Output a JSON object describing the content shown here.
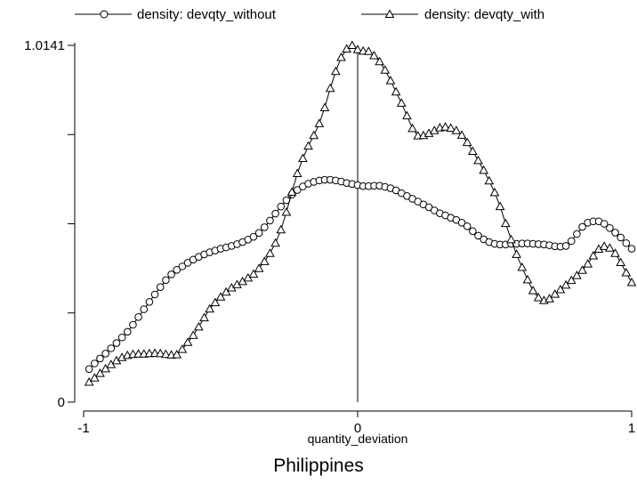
{
  "chart_data": {
    "type": "line",
    "title": "Philippines",
    "xlabel": "quantity_deviation",
    "ylabel": "",
    "xlim": [
      -1,
      1
    ],
    "ylim": [
      0,
      1.0141
    ],
    "xticks": [
      -1,
      0,
      1
    ],
    "xtick_labels": [
      "-1",
      "0",
      "1"
    ],
    "yticks": [
      0,
      0.2535,
      0.507,
      0.7606,
      1.0141
    ],
    "ytick_labels": [
      "0",
      "",
      "",
      "",
      "1.0141"
    ],
    "reference_line_x": 0,
    "legend_position": "top",
    "grid": false,
    "series": [
      {
        "name": "density: devqty_without",
        "marker": "circle",
        "color": "#000000",
        "x": [
          -0.98,
          -0.96,
          -0.94,
          -0.92,
          -0.9,
          -0.88,
          -0.86,
          -0.84,
          -0.82,
          -0.8,
          -0.78,
          -0.76,
          -0.74,
          -0.72,
          -0.7,
          -0.68,
          -0.66,
          -0.64,
          -0.62,
          -0.6,
          -0.58,
          -0.56,
          -0.54,
          -0.52,
          -0.5,
          -0.48,
          -0.46,
          -0.44,
          -0.42,
          -0.4,
          -0.38,
          -0.36,
          -0.34,
          -0.32,
          -0.3,
          -0.28,
          -0.26,
          -0.24,
          -0.22,
          -0.2,
          -0.18,
          -0.16,
          -0.14,
          -0.12,
          -0.1,
          -0.08,
          -0.06,
          -0.04,
          -0.02,
          0,
          0.02,
          0.04,
          0.06,
          0.08,
          0.1,
          0.12,
          0.14,
          0.16,
          0.18,
          0.2,
          0.22,
          0.24,
          0.26,
          0.28,
          0.3,
          0.32,
          0.34,
          0.36,
          0.38,
          0.4,
          0.42,
          0.44,
          0.46,
          0.48,
          0.5,
          0.52,
          0.54,
          0.56,
          0.58,
          0.6,
          0.62,
          0.64,
          0.66,
          0.68,
          0.7,
          0.72,
          0.74,
          0.76,
          0.78,
          0.8,
          0.82,
          0.84,
          0.86,
          0.88,
          0.9,
          0.92,
          0.94,
          0.96,
          0.98,
          1.0
        ],
        "y": [
          0.094,
          0.11,
          0.124,
          0.138,
          0.153,
          0.168,
          0.184,
          0.2,
          0.22,
          0.242,
          0.264,
          0.285,
          0.306,
          0.327,
          0.347,
          0.363,
          0.376,
          0.386,
          0.396,
          0.405,
          0.413,
          0.42,
          0.426,
          0.431,
          0.436,
          0.44,
          0.444,
          0.449,
          0.455,
          0.462,
          0.47,
          0.481,
          0.497,
          0.516,
          0.536,
          0.556,
          0.574,
          0.59,
          0.603,
          0.613,
          0.621,
          0.626,
          0.63,
          0.632,
          0.632,
          0.63,
          0.627,
          0.623,
          0.62,
          0.617,
          0.614,
          0.614,
          0.615,
          0.615,
          0.612,
          0.608,
          0.602,
          0.594,
          0.586,
          0.578,
          0.57,
          0.562,
          0.554,
          0.545,
          0.537,
          0.531,
          0.524,
          0.518,
          0.51,
          0.5,
          0.486,
          0.473,
          0.463,
          0.455,
          0.45,
          0.448,
          0.448,
          0.45,
          0.45,
          0.451,
          0.451,
          0.45,
          0.449,
          0.448,
          0.446,
          0.443,
          0.442,
          0.444,
          0.458,
          0.478,
          0.498,
          0.51,
          0.514,
          0.514,
          0.507,
          0.495,
          0.482,
          0.468,
          0.452,
          0.436
        ]
      },
      {
        "name": "density: devqty_with",
        "marker": "triangle",
        "color": "#000000",
        "x": [
          -0.98,
          -0.96,
          -0.94,
          -0.92,
          -0.9,
          -0.88,
          -0.86,
          -0.84,
          -0.82,
          -0.8,
          -0.78,
          -0.76,
          -0.74,
          -0.72,
          -0.7,
          -0.68,
          -0.66,
          -0.64,
          -0.62,
          -0.6,
          -0.58,
          -0.56,
          -0.54,
          -0.52,
          -0.5,
          -0.48,
          -0.46,
          -0.44,
          -0.42,
          -0.4,
          -0.38,
          -0.36,
          -0.34,
          -0.32,
          -0.3,
          -0.28,
          -0.26,
          -0.24,
          -0.22,
          -0.2,
          -0.18,
          -0.16,
          -0.14,
          -0.12,
          -0.1,
          -0.08,
          -0.06,
          -0.04,
          -0.02,
          0,
          0.02,
          0.04,
          0.06,
          0.08,
          0.1,
          0.12,
          0.14,
          0.16,
          0.18,
          0.2,
          0.22,
          0.24,
          0.26,
          0.28,
          0.3,
          0.32,
          0.34,
          0.36,
          0.38,
          0.4,
          0.42,
          0.44,
          0.46,
          0.48,
          0.5,
          0.52,
          0.54,
          0.56,
          0.58,
          0.6,
          0.62,
          0.64,
          0.66,
          0.68,
          0.7,
          0.72,
          0.74,
          0.76,
          0.78,
          0.8,
          0.82,
          0.84,
          0.86,
          0.88,
          0.9,
          0.92,
          0.94,
          0.96,
          0.98,
          1.0
        ],
        "y": [
          0.057,
          0.069,
          0.082,
          0.095,
          0.107,
          0.118,
          0.127,
          0.133,
          0.136,
          0.137,
          0.137,
          0.138,
          0.139,
          0.138,
          0.136,
          0.134,
          0.135,
          0.15,
          0.17,
          0.19,
          0.214,
          0.24,
          0.265,
          0.283,
          0.299,
          0.313,
          0.325,
          0.334,
          0.343,
          0.353,
          0.364,
          0.38,
          0.4,
          0.423,
          0.452,
          0.49,
          0.54,
          0.597,
          0.65,
          0.693,
          0.728,
          0.758,
          0.792,
          0.837,
          0.892,
          0.94,
          0.98,
          1.004,
          1.014,
          1.002,
          0.998,
          0.997,
          0.985,
          0.968,
          0.944,
          0.914,
          0.882,
          0.85,
          0.814,
          0.778,
          0.757,
          0.758,
          0.764,
          0.772,
          0.78,
          0.782,
          0.779,
          0.772,
          0.759,
          0.738,
          0.713,
          0.687,
          0.659,
          0.629,
          0.596,
          0.556,
          0.508,
          0.462,
          0.42,
          0.383,
          0.348,
          0.317,
          0.297,
          0.289,
          0.294,
          0.307,
          0.32,
          0.333,
          0.346,
          0.36,
          0.375,
          0.393,
          0.416,
          0.435,
          0.443,
          0.438,
          0.423,
          0.397,
          0.368,
          0.34
        ]
      }
    ]
  }
}
